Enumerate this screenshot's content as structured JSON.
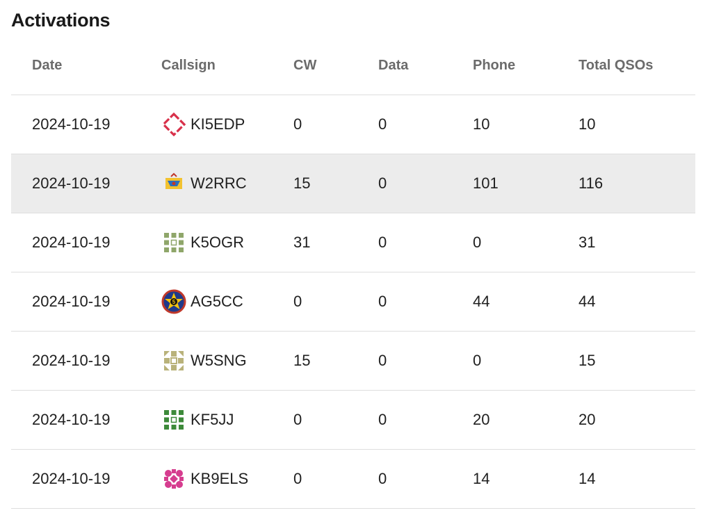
{
  "section": {
    "title": "Activations"
  },
  "table": {
    "headers": {
      "date": "Date",
      "callsign": "Callsign",
      "cw": "CW",
      "data": "Data",
      "phone": "Phone",
      "total": "Total QSOs"
    },
    "rows": [
      {
        "date": "2024-10-19",
        "callsign": "KI5EDP",
        "cw": "0",
        "data": "0",
        "phone": "10",
        "total": "10",
        "avatar_icon": "red-diamond-outline-icon",
        "avatar_color": "#d8304a"
      },
      {
        "date": "2024-10-19",
        "callsign": "W2RRC",
        "cw": "15",
        "data": "0",
        "phone": "101",
        "total": "116",
        "avatar_icon": "club-logo-icon",
        "avatar_color": "#f2c230"
      },
      {
        "date": "2024-10-19",
        "callsign": "K5OGR",
        "cw": "31",
        "data": "0",
        "phone": "0",
        "total": "31",
        "avatar_icon": "green-identicon-icon",
        "avatar_color": "#8fa66a"
      },
      {
        "date": "2024-10-19",
        "callsign": "AG5CC",
        "cw": "0",
        "data": "0",
        "phone": "44",
        "total": "44",
        "avatar_icon": "star-badge-icon",
        "avatar_color": "#1f3a8a"
      },
      {
        "date": "2024-10-19",
        "callsign": "W5SNG",
        "cw": "15",
        "data": "0",
        "phone": "0",
        "total": "15",
        "avatar_icon": "olive-identicon-icon",
        "avatar_color": "#b9b27a"
      },
      {
        "date": "2024-10-19",
        "callsign": "KF5JJ",
        "cw": "0",
        "data": "0",
        "phone": "20",
        "total": "20",
        "avatar_icon": "green-identicon-icon",
        "avatar_color": "#3d8a3a"
      },
      {
        "date": "2024-10-19",
        "callsign": "KB9ELS",
        "cw": "0",
        "data": "0",
        "phone": "14",
        "total": "14",
        "avatar_icon": "pink-identicon-icon",
        "avatar_color": "#d63d8f"
      }
    ],
    "highlighted_row": 1
  }
}
